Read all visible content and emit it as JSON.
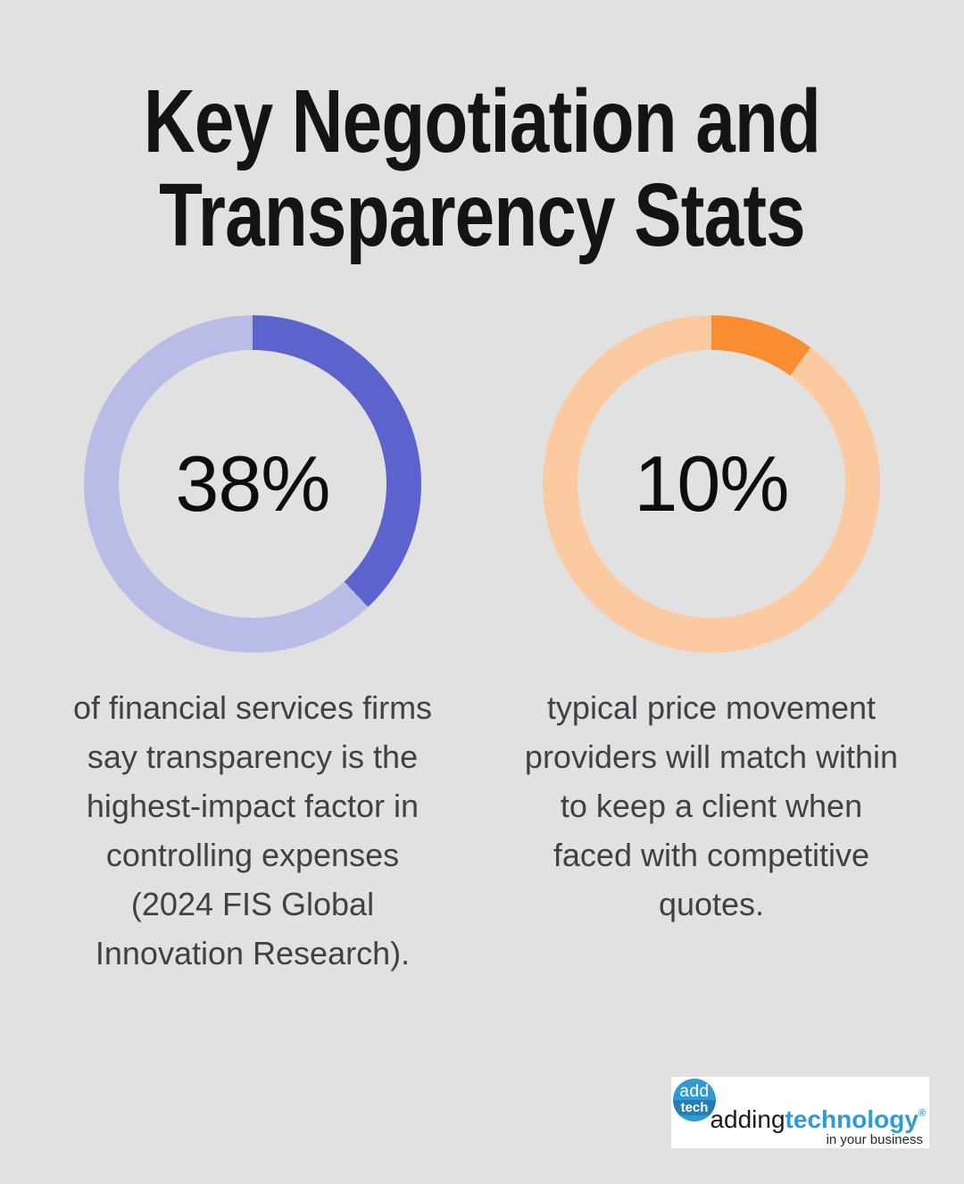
{
  "page": {
    "background": "#e0e1e0",
    "title": "Key Negotiation and\nTransparency Stats"
  },
  "chart_data": [
    {
      "type": "pie",
      "subtype": "donut",
      "label": "38%",
      "value": 38,
      "series": [
        {
          "name": "stat",
          "value": 38,
          "color": "#5c63cd"
        },
        {
          "name": "remainder",
          "value": 62,
          "color": "#b9bce7"
        }
      ],
      "start_angle_deg": 0,
      "direction": "clockwise",
      "description": "of financial services firms\nsay transparency is the\nhighest-impact factor in\ncontrolling expenses\n(2024 FIS Global\nInnovation Research)."
    },
    {
      "type": "pie",
      "subtype": "donut",
      "label": "10%",
      "value": 10,
      "series": [
        {
          "name": "stat",
          "value": 10,
          "color": "#fa8c32"
        },
        {
          "name": "remainder",
          "value": 90,
          "color": "#fccaa0"
        }
      ],
      "start_angle_deg": 0,
      "direction": "clockwise",
      "description": "typical price movement\nproviders will match within\nto keep a client when\nfaced with competitive\nquotes."
    }
  ],
  "logo": {
    "badge_top": "add",
    "badge_bottom": "tech",
    "brand_prefix": "adding",
    "brand_suffix": "technology",
    "registered_mark": "®",
    "tagline": "in your business",
    "brand_color": "#2f9bd4"
  }
}
